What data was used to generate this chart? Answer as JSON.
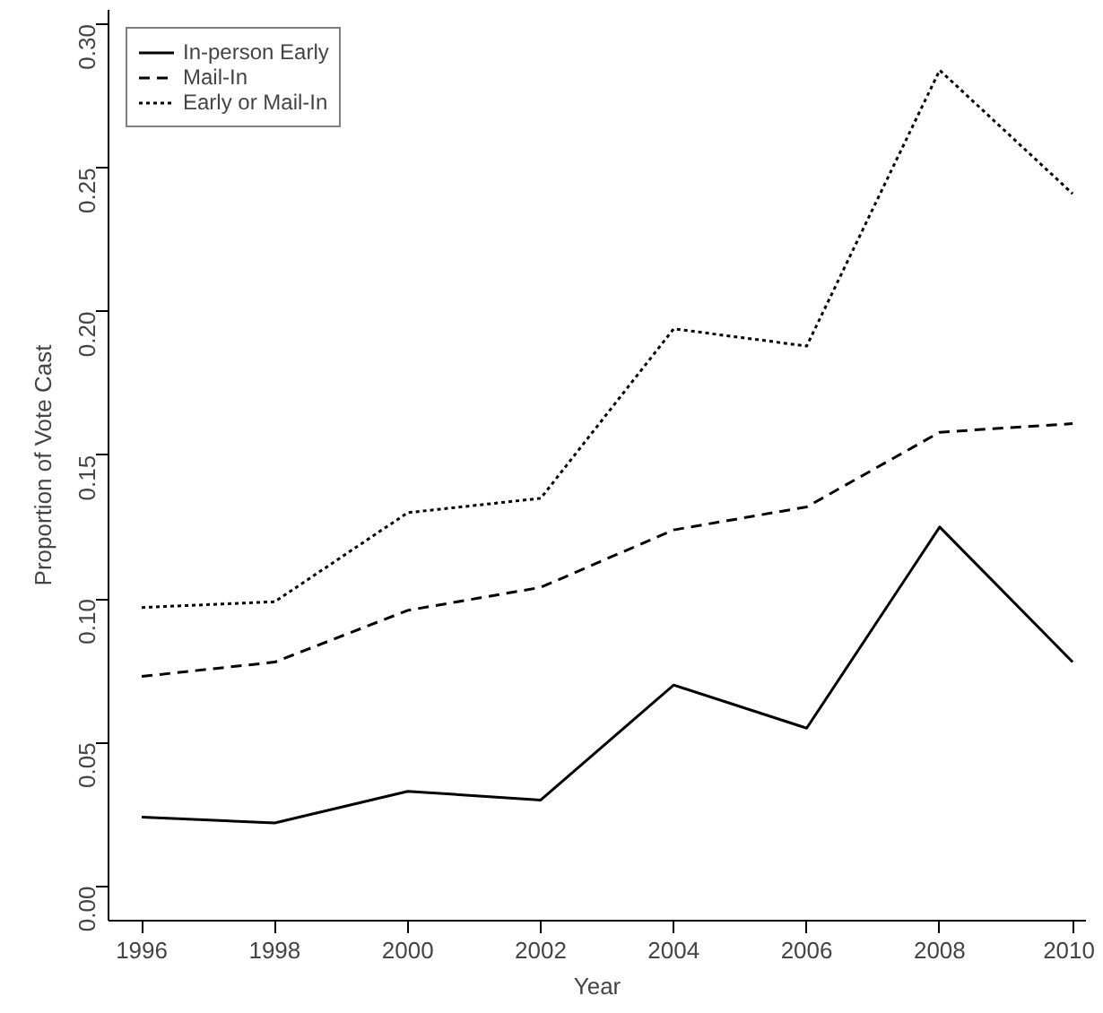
{
  "chart_data": {
    "type": "line",
    "xlabel": "Year",
    "ylabel": "Proportion of Vote Cast",
    "x": [
      1996,
      1998,
      2000,
      2002,
      2004,
      2006,
      2008,
      2010
    ],
    "series": [
      {
        "name": "In-person Early",
        "color": "#000000",
        "line_style": "solid",
        "values": [
          0.024,
          0.022,
          0.033,
          0.03,
          0.07,
          0.055,
          0.125,
          0.078
        ]
      },
      {
        "name": "Mail-In",
        "color": "#000000",
        "line_style": "dashed",
        "values": [
          0.073,
          0.078,
          0.096,
          0.104,
          0.124,
          0.132,
          0.158,
          0.161
        ]
      },
      {
        "name": "Early or Mail-In",
        "color": "#000000",
        "line_style": "dotted",
        "values": [
          0.097,
          0.099,
          0.13,
          0.135,
          0.194,
          0.188,
          0.284,
          0.241
        ]
      }
    ],
    "xlim": [
      1995.5,
      2010.2
    ],
    "ylim": [
      -0.012,
      0.305
    ],
    "xticks": [
      1996,
      1998,
      2000,
      2002,
      2004,
      2006,
      2008,
      2010
    ],
    "yticks": [
      {
        "value": 0,
        "label": "0.00"
      },
      {
        "value": 0.05,
        "label": "0.05"
      },
      {
        "value": 0.1,
        "label": "0.10"
      },
      {
        "value": 0.15,
        "label": "0.15"
      },
      {
        "value": 0.2,
        "label": "0.20"
      },
      {
        "value": 0.25,
        "label": "0.25"
      },
      {
        "value": 0.3,
        "label": "0.30"
      }
    ],
    "grid": false,
    "legend": "top left",
    "marker": "none"
  }
}
